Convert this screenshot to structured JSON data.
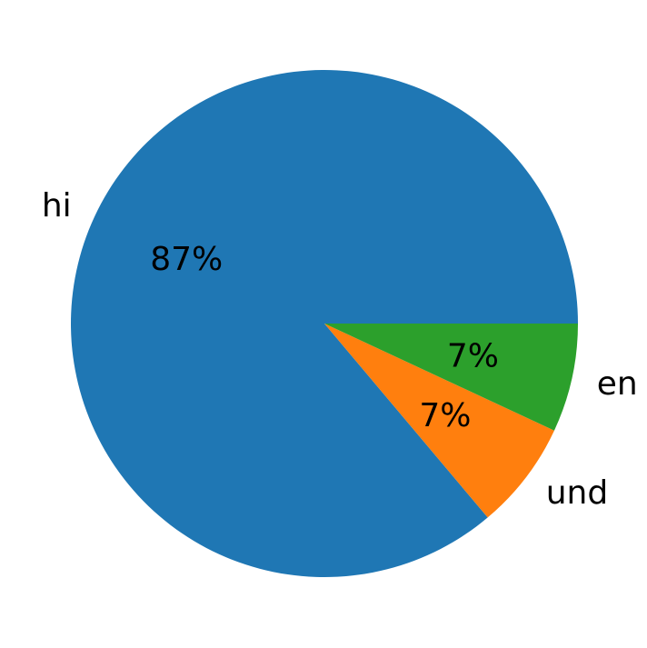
{
  "chart_data": {
    "type": "pie",
    "title": "",
    "legend": false,
    "background": "#ffffff",
    "text_color": "#000000",
    "categories": [
      "hi",
      "und",
      "en"
    ],
    "values": [
      87,
      7,
      7
    ],
    "slices": [
      {
        "label": "hi",
        "value": 87,
        "pct_label": "87%",
        "color": "#1f77b4"
      },
      {
        "label": "und",
        "value": 7,
        "pct_label": "7%",
        "color": "#ff7f0e"
      },
      {
        "label": "en",
        "value": 7,
        "pct_label": "7%",
        "color": "#2ca02c"
      }
    ],
    "start_angle": 0,
    "direction": "counterclockwise",
    "label_distance": 1.1,
    "pct_distance": 0.6
  }
}
